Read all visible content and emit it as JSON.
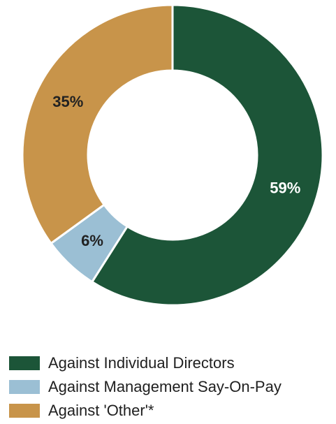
{
  "chart_data": {
    "type": "pie",
    "donut": true,
    "title": "",
    "series": [
      {
        "name": "Against Individual Directors",
        "value": 59,
        "label": "59%",
        "color": "#1c5538",
        "label_color": "#ffffff"
      },
      {
        "name": "Against Management Say-On-Pay",
        "value": 6,
        "label": "6%",
        "color": "#9bbfd4",
        "label_color": "#222222"
      },
      {
        "name": "Against 'Other'*",
        "value": 35,
        "label": "35%",
        "color": "#c8944a",
        "label_color": "#222222"
      }
    ],
    "legend_position": "bottom-left"
  }
}
